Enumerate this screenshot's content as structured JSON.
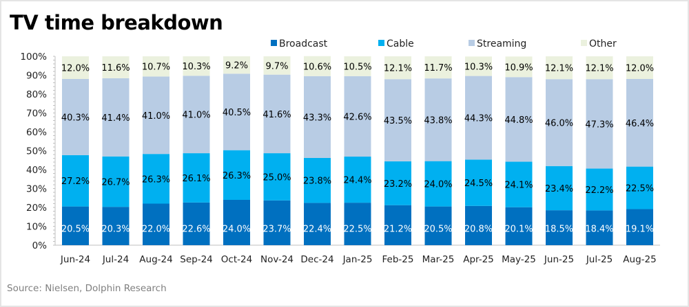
{
  "chart_data": {
    "type": "bar",
    "stacked": true,
    "title": "TV time breakdown",
    "source": "Source:  Nielsen,  Dolphin Research",
    "categories": [
      "Jun-24",
      "Jul-24",
      "Aug-24",
      "Sep-24",
      "Oct-24",
      "Nov-24",
      "Dec-24",
      "Jan-25",
      "Feb-25",
      "Mar-25",
      "Apr-25",
      "May-25",
      "Jun-25",
      "Jul-25",
      "Aug-25"
    ],
    "series": [
      {
        "name": "Broadcast",
        "color": "#0070c0",
        "label_color": "#ffffff",
        "values": [
          20.5,
          20.3,
          22.0,
          22.6,
          24.0,
          23.7,
          22.4,
          22.5,
          21.2,
          20.5,
          20.8,
          20.1,
          18.5,
          18.4,
          19.1
        ]
      },
      {
        "name": "Cable",
        "color": "#00b0f0",
        "label_color": "#000000",
        "values": [
          27.2,
          26.7,
          26.3,
          26.1,
          26.3,
          25.0,
          23.8,
          24.4,
          23.2,
          24.0,
          24.5,
          24.1,
          23.4,
          22.2,
          22.5
        ]
      },
      {
        "name": "Streaming",
        "color": "#b8cce4",
        "label_color": "#000000",
        "values": [
          40.3,
          41.4,
          41.0,
          41.0,
          40.5,
          41.6,
          43.3,
          42.6,
          43.5,
          43.8,
          44.3,
          44.8,
          46.0,
          47.3,
          46.4
        ]
      },
      {
        "name": "Other",
        "color": "#ebf1de",
        "label_color": "#000000",
        "values": [
          12.0,
          11.6,
          10.7,
          10.3,
          9.2,
          9.7,
          10.6,
          10.5,
          12.1,
          11.7,
          10.3,
          10.9,
          12.1,
          12.1,
          12.0
        ]
      }
    ],
    "ylim": [
      0,
      100
    ],
    "yticks": [
      "0%",
      "10%",
      "20%",
      "30%",
      "40%",
      "50%",
      "60%",
      "70%",
      "80%",
      "90%",
      "100%"
    ],
    "legend": "top",
    "grid": false
  },
  "watermark": "Dolphin Research"
}
